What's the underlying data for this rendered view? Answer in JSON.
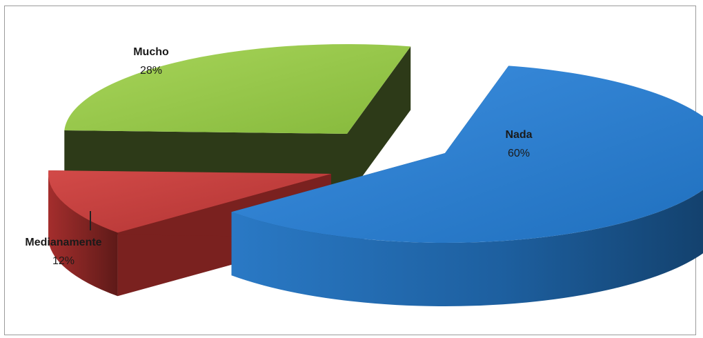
{
  "chart_data": {
    "type": "pie",
    "title": "",
    "categories": [
      "Nada",
      "Medianamente",
      "Mucho"
    ],
    "values": [
      60,
      12,
      28
    ],
    "series": [
      {
        "values": [
          60,
          12,
          28
        ]
      }
    ],
    "data_labels": [
      {
        "category": "Nada",
        "percent": "60%"
      },
      {
        "category": "Medianamente",
        "percent": "12%"
      },
      {
        "category": "Mucho",
        "percent": "28%"
      }
    ],
    "colors": {
      "Nada": "#2f7fcf",
      "Medianamente": "#c0393b",
      "Mucho": "#98c94a"
    },
    "style": "3d-exploded",
    "legend": "none"
  }
}
